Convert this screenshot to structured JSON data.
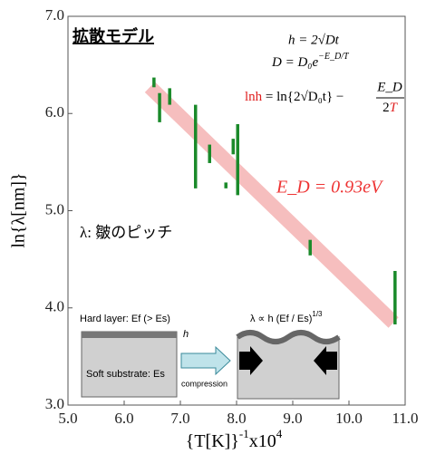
{
  "chart_data": {
    "type": "scatter",
    "title": "拡散モデル",
    "y_label": "ln{λ[nm]}",
    "x_label": "{T[K]}",
    "x_label_exp": "-1",
    "x_label_mult": "x10",
    "x_label_mult_exp": "4",
    "xlim": [
      5.0,
      11.0
    ],
    "ylim": [
      3.0,
      7.0
    ],
    "xticks": [
      {
        "value": 5,
        "label": "5.0"
      },
      {
        "value": 6,
        "label": "6.0"
      },
      {
        "value": 7,
        "label": "7.0"
      },
      {
        "value": 8,
        "label": "8.0"
      },
      {
        "value": 9,
        "label": "9.0"
      },
      {
        "value": 10,
        "label": "10.0"
      },
      {
        "value": 11,
        "label": "11.0"
      }
    ],
    "yticks": [
      {
        "value": 3,
        "label": "3.0"
      },
      {
        "value": 4,
        "label": "4.0"
      },
      {
        "value": 5,
        "label": "5.0"
      },
      {
        "value": 6,
        "label": "6.0"
      },
      {
        "value": 7,
        "label": "7.0"
      }
    ],
    "series": [
      {
        "color": "#1a8a2a",
        "x": [
          6.53,
          6.63,
          6.81,
          7.27,
          7.52,
          7.81,
          7.94,
          8.02,
          9.31,
          10.82
        ],
        "values": [
          6.32,
          6.06,
          6.175,
          5.66,
          5.585,
          5.26,
          5.66,
          5.525,
          4.62,
          4.105
        ],
        "errors": [
          0.05,
          0.15,
          0.085,
          0.43,
          0.095,
          0.03,
          0.08,
          0.365,
          0.08,
          0.275
        ]
      }
    ],
    "fit": {
      "color": "#f5b3b3",
      "x": [
        6.55,
        10.7
      ],
      "values": [
        6.22,
        3.9
      ]
    },
    "annotations": {
      "eq1": "h = 2√Dt",
      "eq2": "D = D₀e",
      "eq2_exp": "−E_D/T",
      "eq3_a": "lnh",
      "eq3_b": " = ln{2√D₀t} − ",
      "eq3_num": "E_D",
      "eq3_den_a": "2",
      "eq3_den_b": "T",
      "energy": "E_D = 0.93eV",
      "lambda": "λ:  皺のピッチ",
      "hard_layer": "Hard layer: Ef (> Es)",
      "h": "h",
      "soft": "Soft substrate: Es",
      "compression": "compression",
      "wavelength": "λ ∝ h (Ef / Es)",
      "wavelength_exp": "1/3"
    }
  }
}
